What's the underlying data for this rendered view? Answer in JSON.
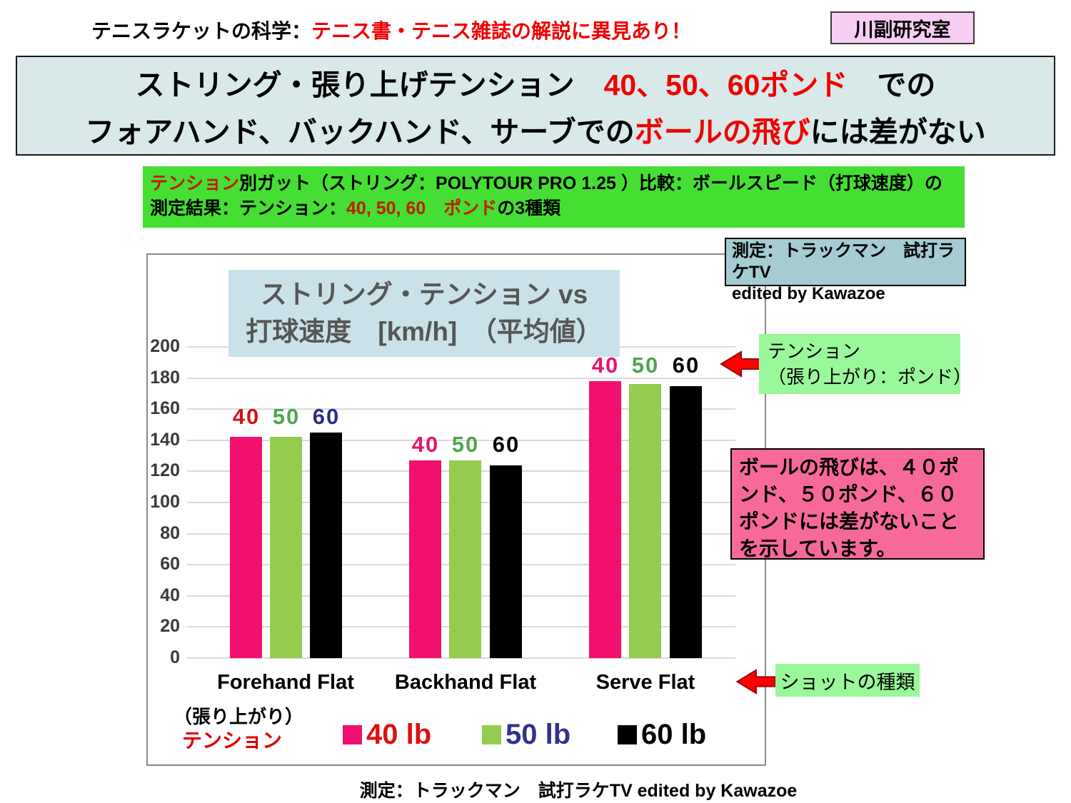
{
  "header": {
    "prefix": "テニスラケットの科学：",
    "highlight": "テニス書・テニス雑誌の解説に異見あり！",
    "lab_badge": "川副研究室"
  },
  "title_banner": {
    "line1_pre": "ストリング・張り上げテンション　",
    "line1_red": "40、50、60ポンド",
    "line1_post": "　での",
    "line2_pre": "フォアハンド、バックハンド、サーブでの",
    "line2_red": "ボールの飛び",
    "line2_post": "には差がない"
  },
  "green_banner": {
    "seg1_red": "テンション",
    "seg2": "別ガット（ストリング：POLYTOUR PRO 1.25 ）比較：ボールスピード（打球速度）の測定結果：テンション：",
    "seg3_red": "40, 50, 60　ポンド",
    "seg4": "の3種類"
  },
  "measure_box": {
    "line1": "測定：トラックマン　試打ラケTV",
    "line2": "edited by Kawazoe"
  },
  "callout_tension": {
    "line1": "テンション",
    "line2": "（張り上がり：ポンド）"
  },
  "note_box": {
    "text": "ボールの飛びは、４０ポ\nンド、５０ポンド、６０\nポンドには差がないこと\nを示しています。"
  },
  "callout_shot": {
    "label": "ショットの種類"
  },
  "axis_annotations": {
    "harigari": "（張り上がり）",
    "tension": "テンション"
  },
  "legend": {
    "items": [
      {
        "label": "40 lb",
        "swatch_color": "#f2106e",
        "text_color": "#dd1111"
      },
      {
        "label": "50 lb",
        "swatch_color": "#94cc50",
        "text_color": "#32328c"
      },
      {
        "label": "60 lb",
        "swatch_color": "#000000",
        "text_color": "#000000"
      }
    ]
  },
  "bottom_caption": "測定：トラックマン　試打ラケTV edited by Kawazoe",
  "chart_data": {
    "type": "bar",
    "title_line1": "ストリング・テンション vs",
    "title_line2": "打球速度　[km/h]　（平均値）",
    "categories": [
      "Forehand Flat",
      "Backhand Flat",
      "Serve Flat"
    ],
    "series": [
      {
        "name": "40 lb",
        "color": "#f2106e",
        "values": [
          142,
          127,
          178
        ]
      },
      {
        "name": "50 lb",
        "color": "#94cc50",
        "values": [
          142,
          127,
          176
        ]
      },
      {
        "name": "60 lb",
        "color": "#000000",
        "values": [
          145,
          124,
          175
        ]
      }
    ],
    "bar_labels": [
      "40",
      "50",
      "60"
    ],
    "bar_label_colors": [
      [
        "#d31414",
        "#4ea64e",
        "#2b2b8c"
      ],
      [
        "#e8156c",
        "#4ea64e",
        "#000000"
      ],
      [
        "#e8156c",
        "#4ea64e",
        "#000000"
      ]
    ],
    "ylabel": "",
    "xlabel": "",
    "ylim": [
      0,
      200
    ],
    "ytick_step": 20,
    "grid": true,
    "legend_position": "bottom"
  }
}
